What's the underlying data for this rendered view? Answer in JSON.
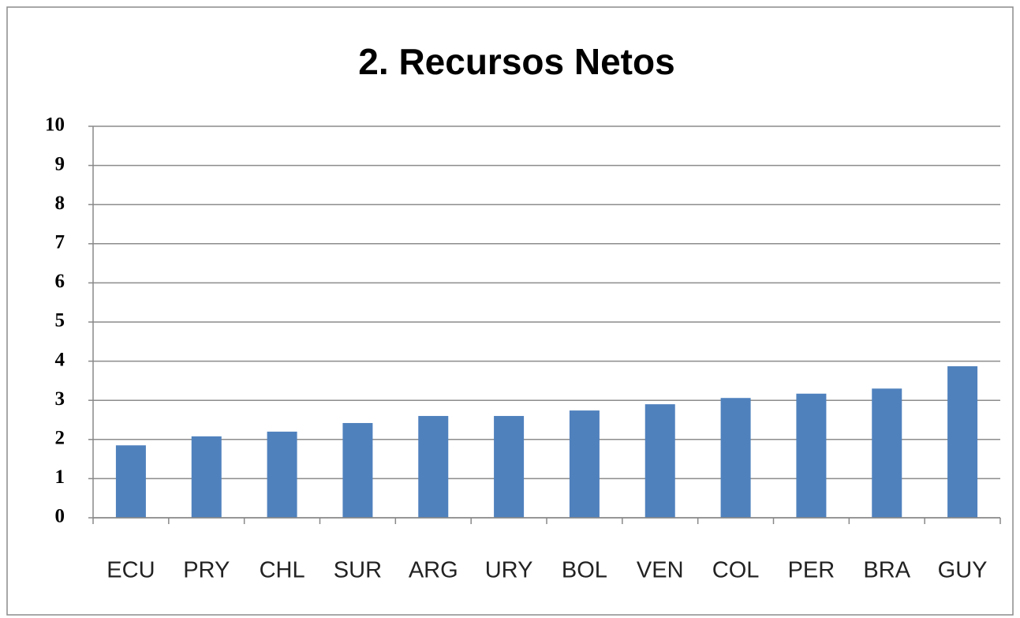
{
  "chart_data": {
    "type": "bar",
    "title": "2. Recursos Netos",
    "categories": [
      "ECU",
      "PRY",
      "CHL",
      "SUR",
      "ARG",
      "URY",
      "BOL",
      "VEN",
      "COL",
      "PER",
      "BRA",
      "GUY"
    ],
    "values": [
      1.85,
      2.08,
      2.2,
      2.42,
      2.6,
      2.6,
      2.74,
      2.9,
      3.06,
      3.17,
      3.3,
      3.87
    ],
    "color": "#4f81bd",
    "ylim": [
      0,
      10
    ],
    "yticks": [
      0,
      1,
      2,
      3,
      4,
      5,
      6,
      7,
      8,
      9,
      10
    ],
    "grid": true
  }
}
